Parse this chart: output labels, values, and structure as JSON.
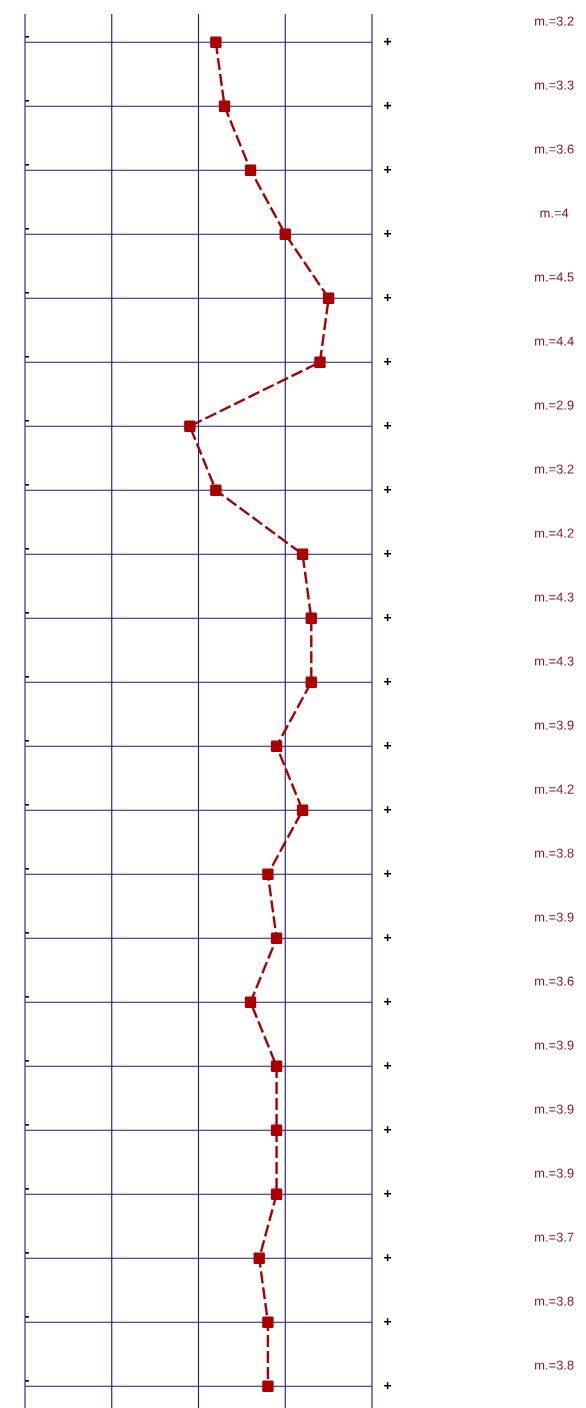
{
  "chart_data": {
    "type": "line",
    "orientation": "horizontal",
    "categories": [
      "-",
      "-",
      "-",
      "-",
      "-",
      "-",
      "-",
      "-",
      "-",
      "-",
      "-",
      "-",
      "-",
      "-",
      "-",
      "-",
      "-",
      "-",
      "-",
      "-",
      "-",
      "-"
    ],
    "values": [
      3.2,
      3.3,
      3.6,
      4,
      4.5,
      4.4,
      2.9,
      3.2,
      4.2,
      4.3,
      4.3,
      3.9,
      4.2,
      3.8,
      3.9,
      3.6,
      3.9,
      3.9,
      3.9,
      3.7,
      3.8,
      3.8
    ],
    "value_labels": [
      "m.=3.2",
      "m.=3.3",
      "m.=3.6",
      "m.=4",
      "m.=4.5",
      "m.=4.4",
      "m.=2.9",
      "m.=3.2",
      "m.=4.2",
      "m.=4.3",
      "m.=4.3",
      "m.=3.9",
      "m.=4.2",
      "m.=3.8",
      "m.=3.9",
      "m.=3.6",
      "m.=3.9",
      "m.=3.9",
      "m.=3.9",
      "m.=3.7",
      "m.=3.8",
      "m.=3.8"
    ],
    "annotations": [
      "+",
      "+",
      "+",
      "+",
      "+",
      "+",
      "+",
      "+",
      "+",
      "+",
      "+",
      "+",
      "+",
      "+",
      "+",
      "+",
      "+",
      "+",
      "+",
      "+",
      "+",
      "+"
    ],
    "color": "#aa0000",
    "xlim": [
      1,
      5
    ],
    "xticks": [
      {
        "value": 1,
        "label": null
      },
      {
        "value": 2,
        "label": null
      },
      {
        "value": 3,
        "label": null
      },
      {
        "value": 4,
        "label": null
      },
      {
        "value": 5,
        "label": null
      }
    ],
    "grid": true,
    "tick_labels": "y",
    "marker": "square",
    "line_style": "dashed",
    "legend": false
  }
}
